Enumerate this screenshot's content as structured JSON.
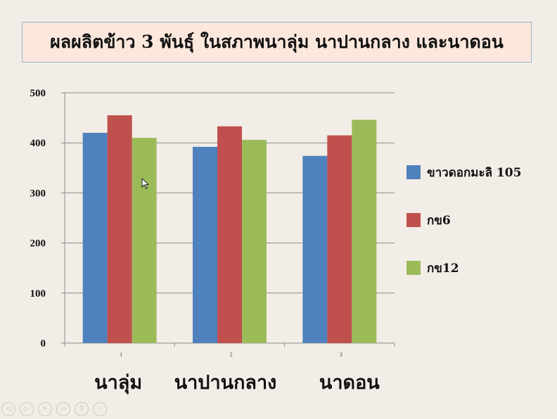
{
  "slide": {
    "title": "ผลผลิตข้าว 3 พันธุ์ ในสภาพนาลุ่ม นาปานกลาง และนาดอน"
  },
  "chart_data": {
    "type": "bar",
    "categories": [
      "1",
      "2",
      "3"
    ],
    "category_labels": [
      "นาลุ่ม",
      "นาปานกลาง",
      "นาดอน"
    ],
    "series": [
      {
        "name": "ขาวดอกมะลิ 105",
        "values": [
          420,
          392,
          374
        ],
        "color": "#4f81bd"
      },
      {
        "name": "กข6",
        "values": [
          455,
          433,
          415
        ],
        "color": "#c0504d"
      },
      {
        "name": "กข12",
        "values": [
          410,
          406,
          446
        ],
        "color": "#9bbb59"
      }
    ],
    "ylim": [
      0,
      500
    ],
    "yticks": [
      0,
      100,
      200,
      300,
      400,
      500
    ],
    "grid": true,
    "legend": "right"
  },
  "toolbar": {
    "buttons": [
      {
        "name": "prev-button",
        "icon": "chevron-left-icon",
        "glyph": "◁"
      },
      {
        "name": "next-button",
        "icon": "chevron-right-icon",
        "glyph": "▷"
      },
      {
        "name": "pen-button",
        "icon": "pen-icon",
        "glyph": "✎"
      },
      {
        "name": "slides-button",
        "icon": "slides-icon",
        "glyph": "▭"
      },
      {
        "name": "zoom-button",
        "icon": "zoom-icon",
        "glyph": "⚲"
      },
      {
        "name": "more-button",
        "icon": "more-icon",
        "glyph": "···"
      }
    ]
  }
}
